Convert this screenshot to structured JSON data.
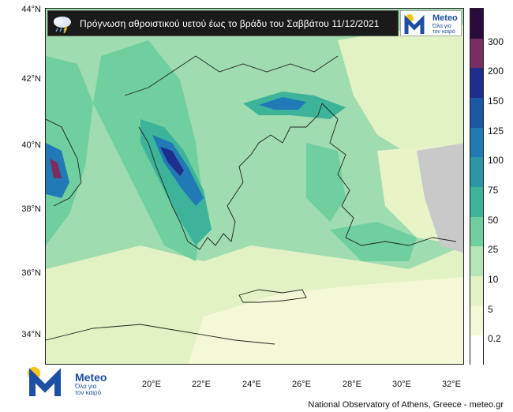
{
  "title": "Πρόγνωση αθροιστικού υετού έως το βράδυ του Σαββάτου 11/12/2021",
  "logo": {
    "word": "Meteo",
    "tagline_1": "Όλα για",
    "tagline_2": "τον καιρό"
  },
  "credit": "National Observatory of Athens, Greece - meteo.gr",
  "map": {
    "lat_range": [
      33,
      44
    ],
    "lon_range": [
      16.2,
      33.2
    ],
    "lat_ticks": [
      {
        "value": 44,
        "label": "44°N"
      },
      {
        "value": 42,
        "label": "42°N"
      },
      {
        "value": 40,
        "label": "40°N"
      },
      {
        "value": 38,
        "label": "38°N"
      },
      {
        "value": 36,
        "label": "36°N"
      },
      {
        "value": 34,
        "label": "34°N"
      }
    ],
    "lon_ticks": [
      {
        "value": 20,
        "label": "20°E"
      },
      {
        "value": 22,
        "label": "22°E"
      },
      {
        "value": 24,
        "label": "24°E"
      },
      {
        "value": 26,
        "label": "26°E"
      },
      {
        "value": 28,
        "label": "28°E"
      },
      {
        "value": 30,
        "label": "30°E"
      },
      {
        "value": 32,
        "label": "32°E"
      }
    ]
  },
  "colorbar": {
    "levels": [
      {
        "label": "0.2",
        "color": "#ffffff"
      },
      {
        "label": "5",
        "color": "#f4f8d6"
      },
      {
        "label": "10",
        "color": "#e2f2c4"
      },
      {
        "label": "25",
        "color": "#b4e6b7"
      },
      {
        "label": "50",
        "color": "#6fcf9f"
      },
      {
        "label": "75",
        "color": "#3db39a"
      },
      {
        "label": "100",
        "color": "#2d96a6"
      },
      {
        "label": "125",
        "color": "#2179b5"
      },
      {
        "label": "150",
        "color": "#1a57a5"
      },
      {
        "label": "200",
        "color": "#1e2e8f"
      },
      {
        "label": "300",
        "color": "#7a2f60"
      },
      {
        "label": "",
        "color": "#2a0b3c"
      }
    ]
  },
  "colors": {
    "sea_light": "#e8f4c8",
    "land_green": "#9fdcb0",
    "heavy_teal": "#3db39a",
    "heavy_blue": "#2179b5",
    "extreme": "#7a2f60",
    "nodata": "#c9c9c9",
    "border_line": "#222222"
  }
}
